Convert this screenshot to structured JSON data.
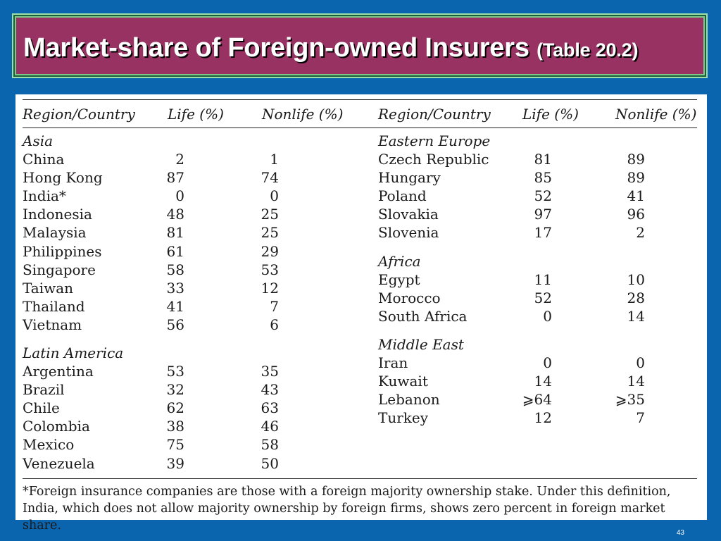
{
  "slide": {
    "title": "Market-share of Foreign-owned Insurers ",
    "title_sub": "(Table 20.2)",
    "page_number": "43"
  },
  "table": {
    "headers": [
      "Region/Country",
      "Life (%)",
      "Nonlife (%)"
    ],
    "left_column": [
      {
        "group": "Asia",
        "rows": [
          [
            "China",
            "2",
            "1"
          ],
          [
            "Hong Kong",
            "87",
            "74"
          ],
          [
            "India*",
            "0",
            "0"
          ],
          [
            "Indonesia",
            "48",
            "25"
          ],
          [
            "Malaysia",
            "81",
            "25"
          ],
          [
            "Philippines",
            "61",
            "29"
          ],
          [
            "Singapore",
            "58",
            "53"
          ],
          [
            "Taiwan",
            "33",
            "12"
          ],
          [
            "Thailand",
            "41",
            "7"
          ],
          [
            "Vietnam",
            "56",
            "6"
          ]
        ]
      },
      {
        "group": "Latin America",
        "rows": [
          [
            "Argentina",
            "53",
            "35"
          ],
          [
            "Brazil",
            "32",
            "43"
          ],
          [
            "Chile",
            "62",
            "63"
          ],
          [
            "Colombia",
            "38",
            "46"
          ],
          [
            "Mexico",
            "75",
            "58"
          ],
          [
            "Venezuela",
            "39",
            "50"
          ]
        ]
      }
    ],
    "right_column": [
      {
        "group": "Eastern Europe",
        "rows": [
          [
            "Czech Republic",
            "81",
            "89"
          ],
          [
            "Hungary",
            "85",
            "89"
          ],
          [
            "Poland",
            "52",
            "41"
          ],
          [
            "Slovakia",
            "97",
            "96"
          ],
          [
            "Slovenia",
            "17",
            "2"
          ]
        ]
      },
      {
        "group": "Africa",
        "rows": [
          [
            "Egypt",
            "11",
            "10"
          ],
          [
            "Morocco",
            "52",
            "28"
          ],
          [
            "South Africa",
            "0",
            "14"
          ]
        ]
      },
      {
        "group": "Middle East",
        "rows": [
          [
            "Iran",
            "0",
            "0"
          ],
          [
            "Kuwait",
            "14",
            "14"
          ],
          [
            "Lebanon",
            "⩾64",
            "⩾35"
          ],
          [
            "Turkey",
            "12",
            "7"
          ]
        ]
      }
    ],
    "footnote": "*Foreign insurance companies are those with a foreign majority ownership stake. Under this definition, India, which does not allow majority ownership by foreign firms, shows zero percent in foreign market share."
  }
}
